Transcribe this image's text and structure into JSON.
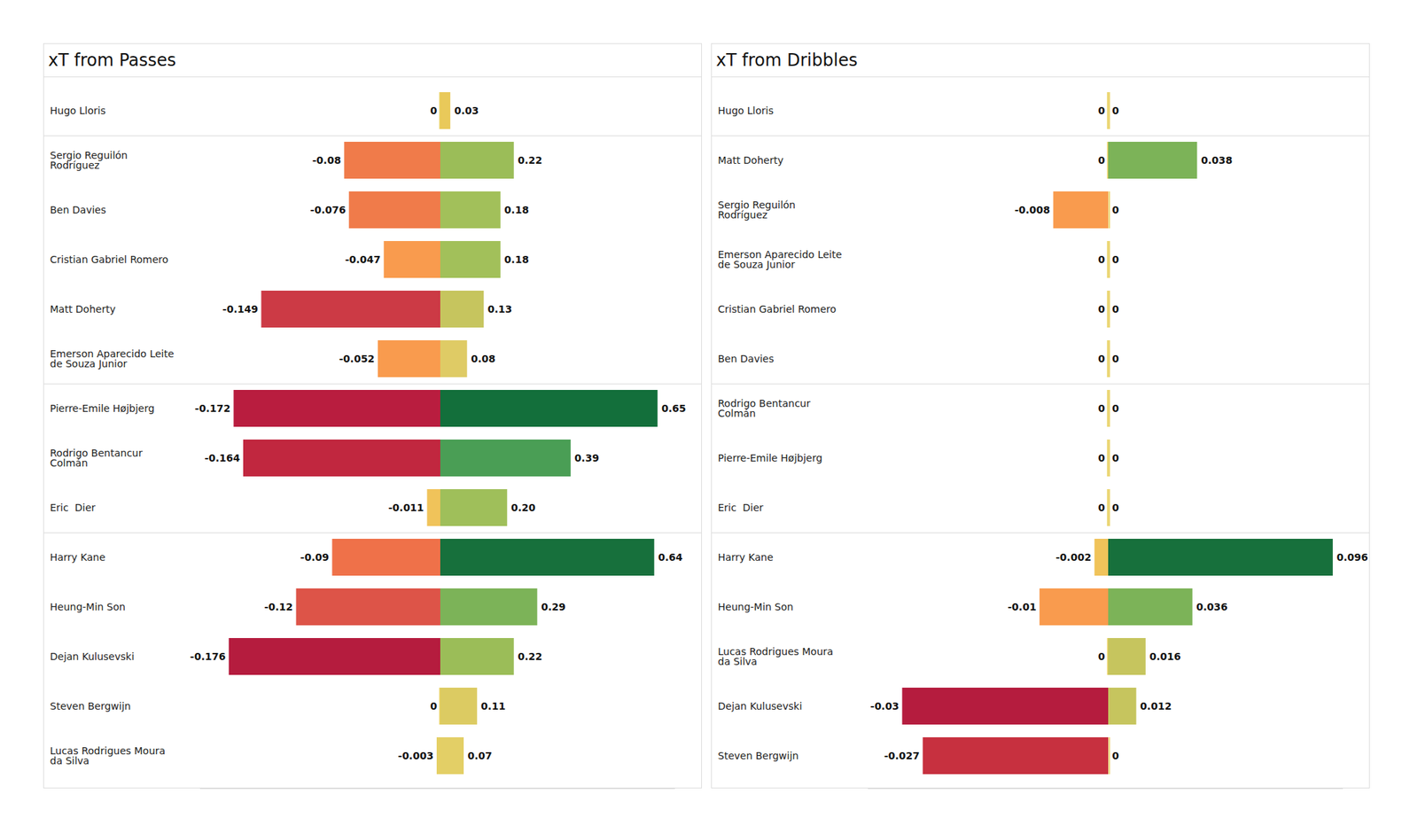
{
  "chart_data": [
    {
      "type": "bar",
      "title": "xT from Passes",
      "orientation": "horizontal",
      "data_labels": true,
      "tick_labels": "y",
      "categories": [
        "Hugo Lloris",
        "Sergio Reguilón\nRodríguez",
        "Ben Davies",
        "Cristian Gabriel Romero",
        "Matt Doherty",
        "Emerson Aparecido Leite\nde Souza Junior",
        "Pierre-Emile Højbjerg",
        "Rodrigo Bentancur\nColmán",
        "Eric  Dier",
        "Harry Kane",
        "Heung-Min Son",
        "Dejan Kulusevski",
        "Steven Bergwijn",
        "Lucas Rodrigues Moura\nda Silva"
      ],
      "group_sizes": [
        1,
        5,
        3,
        5
      ],
      "series": [
        {
          "values": [
            0,
            -0.08,
            -0.076,
            -0.047,
            -0.149,
            -0.052,
            -0.172,
            -0.164,
            -0.011,
            -0.09,
            -0.12,
            -0.176,
            0,
            -0.003
          ],
          "value_labels": [
            "0",
            "-0.08",
            "-0.076",
            "-0.047",
            "-0.149",
            "-0.052",
            "-0.172",
            "-0.164",
            "-0.011",
            "-0.09",
            "-0.12",
            "-0.176",
            "0",
            "-0.003"
          ],
          "colors": [
            "#e8d060",
            "#f07b4a",
            "#f07b4a",
            "#f99b4e",
            "#cc3a45",
            "#f99b4e",
            "#b91d3f",
            "#c1273f",
            "#f0c35a",
            "#ef7149",
            "#dd5448",
            "#b51c3e",
            "#e8d060",
            "#e5cf63"
          ],
          "xlim": [
            -0.2,
            0
          ]
        },
        {
          "values": [
            0.03,
            0.22,
            0.18,
            0.18,
            0.13,
            0.08,
            0.65,
            0.39,
            0.2,
            0.64,
            0.29,
            0.22,
            0.11,
            0.07
          ],
          "value_labels": [
            "0.03",
            "0.22",
            "0.18",
            "0.18",
            "0.13",
            "0.08",
            "0.65",
            "0.39",
            "0.20",
            "0.64",
            "0.29",
            "0.22",
            "0.11",
            "0.07"
          ],
          "colors": [
            "#e9c95a",
            "#9bbd58",
            "#a2c05a",
            "#a2c05a",
            "#c6c55e",
            "#dfcb65",
            "#136f3b",
            "#4a9e55",
            "#9fbf5a",
            "#17703c",
            "#7cb358",
            "#9bbd58",
            "#dccb62",
            "#e3cf66"
          ],
          "xlim": [
            0,
            0.7
          ]
        }
      ]
    },
    {
      "type": "bar",
      "title": "xT from Dribbles",
      "orientation": "horizontal",
      "data_labels": true,
      "tick_labels": "y",
      "categories": [
        "Hugo Lloris",
        "Matt Doherty",
        "Sergio Reguilón\nRodríguez",
        "Emerson Aparecido Leite\nde Souza Junior",
        "Cristian Gabriel Romero",
        "Ben Davies",
        "Rodrigo Bentancur\nColmán",
        "Pierre-Emile Højbjerg",
        "Eric  Dier",
        "Harry Kane",
        "Heung-Min Son",
        "Lucas Rodrigues Moura\nda Silva",
        "Dejan Kulusevski",
        "Steven Bergwijn"
      ],
      "group_sizes": [
        1,
        5,
        3,
        5
      ],
      "series": [
        {
          "values": [
            0,
            0,
            -0.008,
            0,
            0,
            0,
            0,
            0,
            0,
            -0.002,
            -0.01,
            0,
            -0.03,
            -0.027
          ],
          "value_labels": [
            "0",
            "0",
            "-0.008",
            "0",
            "0",
            "0",
            "0",
            "0",
            "0",
            "-0.002",
            "-0.01",
            "0",
            "-0.03",
            "-0.027"
          ],
          "colors": [
            "#e8d060",
            "#e8d060",
            "#f99b4e",
            "#e8d060",
            "#e8d060",
            "#e8d060",
            "#e8d060",
            "#e8d060",
            "#e8d060",
            "#f0c35a",
            "#f99b4e",
            "#e8d060",
            "#b51c3e",
            "#c7303f"
          ],
          "xlim": [
            -0.035,
            0
          ]
        },
        {
          "values": [
            0,
            0.038,
            0,
            0,
            0,
            0,
            0,
            0,
            0,
            0.096,
            0.036,
            0.016,
            0.012,
            0
          ],
          "value_labels": [
            "0",
            "0.038",
            "0",
            "0",
            "0",
            "0",
            "0",
            "0",
            "0",
            "0.096",
            "0.036",
            "0.016",
            "0.012",
            "0"
          ],
          "colors": [
            "#e8d060",
            "#7cb358",
            "#e8d060",
            "#e8d060",
            "#e8d060",
            "#e8d060",
            "#e8d060",
            "#e8d060",
            "#e8d060",
            "#17703c",
            "#7cb358",
            "#c6c55e",
            "#c6c55e",
            "#e8d060"
          ],
          "xlim": [
            0,
            0.1
          ]
        }
      ]
    }
  ]
}
